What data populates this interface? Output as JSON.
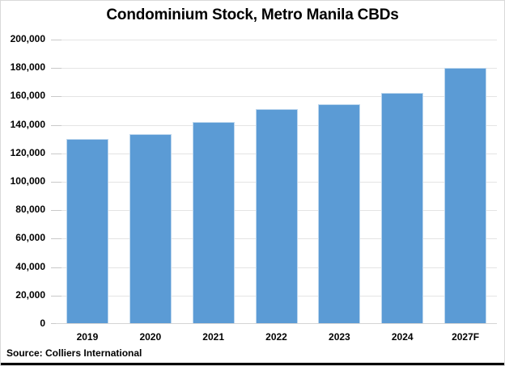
{
  "source": {
    "label": "Source: Colliers International"
  },
  "chart_data": {
    "type": "bar",
    "title": "Condominium Stock, Metro Manila CBDs",
    "categories": [
      "2019",
      "2020",
      "2021",
      "2022",
      "2023",
      "2024",
      "2027F"
    ],
    "values": [
      130000,
      133500,
      142000,
      151000,
      154500,
      162500,
      180000
    ],
    "xlabel": "",
    "ylabel": "",
    "ylim": [
      0,
      200000
    ],
    "ytick_step": 20000,
    "ytick_labels": [
      "0",
      "20,000",
      "40,000",
      "60,000",
      "80,000",
      "100,000",
      "120,000",
      "140,000",
      "160,000",
      "180,000",
      "200,000"
    ],
    "grid": true,
    "legend": "none",
    "colors": {
      "bar_fill": "#5B9BD5",
      "bar_edge": "#BDD7EE",
      "gridline": "#E4E4E4",
      "axis_line": "#D4D4D4",
      "tick": "#C9C9C9",
      "text": "#000000",
      "frame_border": "#D9D9D9",
      "bottom_rule": "#000000",
      "background": "#FFFFFF"
    }
  }
}
